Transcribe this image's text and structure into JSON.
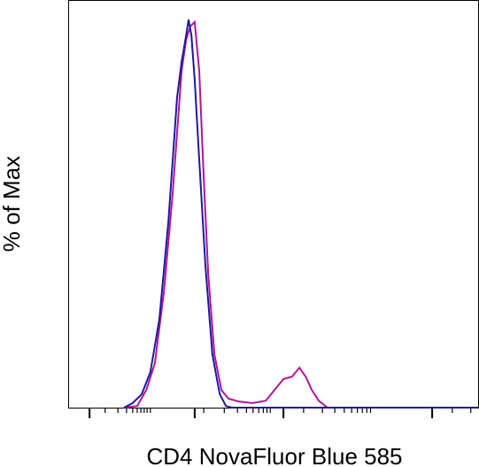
{
  "chart_data": {
    "type": "line",
    "xlabel": "CD4 NovaFluor Blue 585",
    "ylabel": "% of Max",
    "xlim": [
      0,
      100
    ],
    "ylim": [
      0,
      100
    ],
    "xticks": [
      5.2,
      30.8,
      52.4,
      88.6
    ],
    "xminor_ticks": [
      9.0,
      12.1,
      14.2,
      15.7,
      16.8,
      17.7,
      18.5,
      19.2,
      20.0,
      33.0,
      38.0,
      41.2,
      43.4,
      45.0,
      46.4,
      47.5,
      48.4,
      49.2,
      57.3,
      61.9,
      64.9,
      67.2,
      69.0,
      70.4,
      71.6,
      72.7,
      73.6,
      93.5,
      98.0
    ],
    "series": [
      {
        "color": "#b0149e",
        "x": [
          13.6,
          16.8,
          19.0,
          21.1,
          23.3,
          25.4,
          26.5,
          27.6,
          28.7,
          29.7,
          30.8,
          31.9,
          33.0,
          34.1,
          35.6,
          37.3,
          39.0,
          41.6,
          44.8,
          48.1,
          50.2,
          52.4,
          54.5,
          56.3,
          57.8,
          59.3,
          61.0,
          63.1,
          99.8
        ],
        "values": [
          0,
          0.4,
          4.3,
          10.9,
          28.3,
          52.2,
          67.4,
          82.6,
          90.2,
          93.5,
          94.6,
          82.6,
          56.5,
          32.6,
          13.0,
          4.3,
          2.2,
          1.5,
          1.1,
          1.7,
          4.3,
          7.0,
          7.6,
          9.8,
          7.6,
          4.3,
          1.7,
          0,
          0
        ]
      },
      {
        "color": "#1a1aa0",
        "x": [
          13.6,
          15.7,
          17.9,
          20.0,
          22.2,
          24.4,
          26.5,
          27.6,
          28.7,
          29.3,
          30.0,
          30.8,
          31.9,
          33.4,
          35.1,
          36.9,
          38.4,
          39.9,
          99.8
        ],
        "values": [
          0,
          1.1,
          3.3,
          8.7,
          21.7,
          45.7,
          76.1,
          84.8,
          91.3,
          95.2,
          91.3,
          80.4,
          60.9,
          34.8,
          13.0,
          3.3,
          0.4,
          0,
          0
        ]
      }
    ]
  }
}
